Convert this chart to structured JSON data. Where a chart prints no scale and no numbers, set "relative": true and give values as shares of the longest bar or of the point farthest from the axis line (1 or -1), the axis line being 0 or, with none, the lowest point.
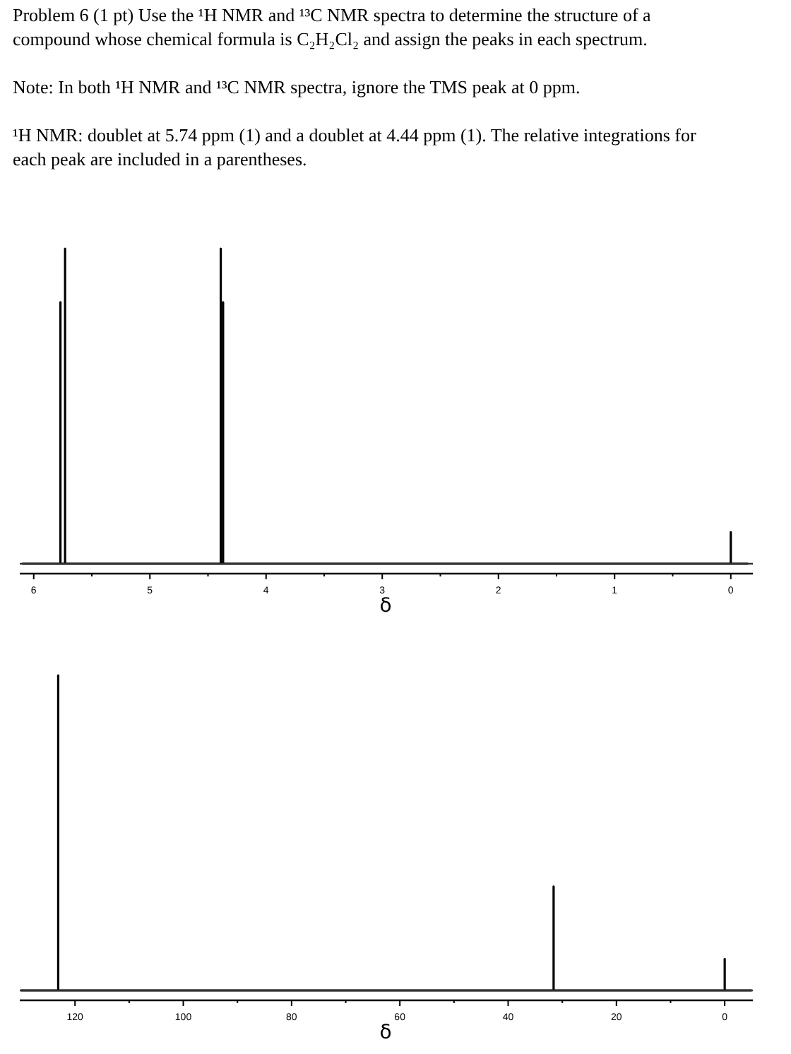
{
  "chart_data": [
    {
      "type": "line",
      "title": "Problem 6 (1 pt) Use the ¹H NMR and ¹³C NMR spectra to determine the structure of a compound whose chemical formula is C₂H₂Cl₂ and assign the peaks in each spectrum.",
      "annotations": [
        "Note: In both ¹H NMR and ¹³C NMR spectra, ignore the TMS peak at 0 ppm.",
        "¹H NMR: doublet at 5.74 ppm (1) and a doublet at 4.44 ppm (1). The relative integrations for each peak are included in a parentheses."
      ],
      "xlabel": "δ",
      "relative": true,
      "xlim": [
        6.12,
        -0.19
      ],
      "xticks": [
        6,
        {
          "value": 5.5,
          "label": null
        },
        5,
        {
          "value": 4.5,
          "label": null
        },
        4,
        {
          "value": 3.5,
          "label": null
        },
        3,
        {
          "value": 2.5,
          "label": null
        },
        2,
        {
          "value": 1.5,
          "label": null
        },
        1,
        {
          "value": 0.5,
          "label": null
        },
        0
      ],
      "series": [
        {
          "color": "#000000",
          "x": [
            6.1,
            5.77,
            5.77,
            5.77,
            5.73,
            5.73,
            5.73,
            4.39,
            4.39,
            4.39,
            4.37,
            4.37,
            4.37,
            0,
            0,
            0,
            -0.15
          ],
          "values": [
            0,
            0,
            0.83,
            0,
            0,
            1,
            0,
            0,
            1,
            0,
            0,
            0.83,
            0,
            0,
            0.1,
            0,
            0
          ]
        }
      ]
    },
    {
      "type": "line",
      "xlabel": "δ",
      "relative": true,
      "xlim": [
        130.2,
        -5.2
      ],
      "xticks": [
        120,
        {
          "value": 110,
          "label": null
        },
        100,
        {
          "value": 90,
          "label": null
        },
        80,
        {
          "value": 70,
          "label": null
        },
        60,
        {
          "value": 50,
          "label": null
        },
        40,
        {
          "value": 30,
          "label": null
        },
        20,
        {
          "value": 10,
          "label": null
        },
        0
      ],
      "series": [
        {
          "color": "#000000",
          "x": [
            130,
            123.1,
            123.1,
            123.1,
            31.6,
            31.6,
            31.6,
            0,
            0,
            0,
            -5
          ],
          "values": [
            0,
            0,
            1,
            0,
            0,
            0.33,
            0,
            0,
            0.1,
            0,
            0
          ]
        }
      ]
    }
  ]
}
